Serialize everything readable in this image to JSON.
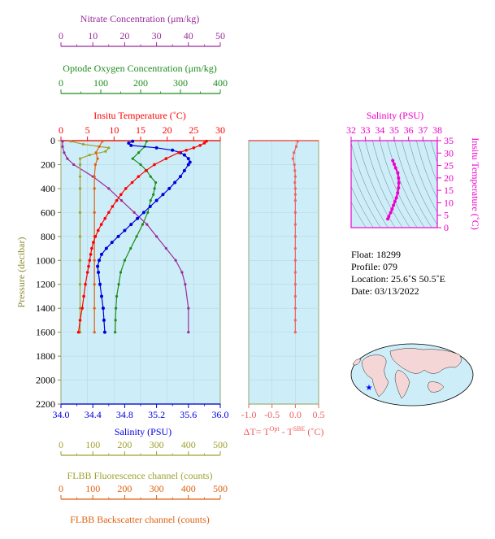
{
  "colors": {
    "nitrate": "#9b2b9b",
    "oxygen": "#1e8c1e",
    "temperature": "#ff0000",
    "salinity": "#0000dd",
    "fluorescence": "#a0a030",
    "backscatter": "#e06010",
    "delta_t": "#f06060",
    "inset": "#ee00cc",
    "plot_bg": "#cdeef8",
    "frame": "#8a8a30"
  },
  "info": {
    "float": "Float:  18299",
    "profile": "Profile:  079",
    "location": "Location:  25.6˚S  50.5˚E",
    "date": "Date:  03/13/2022"
  },
  "map_icon": "world-map-with-float-location-star",
  "chart_data": [
    {
      "type": "line",
      "name": "main-profiles",
      "ylabel": "Pressure (decibar)",
      "y_ticks": [
        "0",
        "200",
        "400",
        "600",
        "800",
        "1000",
        "1200",
        "1400",
        "1600",
        "1800",
        "2000",
        "2200"
      ],
      "ylim": [
        2200,
        0
      ],
      "axes": {
        "temperature": {
          "title": "Insitu Temperature (˚C)",
          "ticks": [
            "0",
            "5",
            "10",
            "15",
            "20",
            "25",
            "30"
          ],
          "range": [
            0,
            30
          ]
        },
        "salinity": {
          "title": "Salinity (PSU)",
          "ticks": [
            "34.0",
            "34.4",
            "34.8",
            "35.2",
            "35.6",
            "36.0"
          ],
          "range": [
            34.0,
            36.0
          ]
        },
        "nitrate": {
          "title": "Nitrate Concentration (μm/kg)",
          "ticks": [
            "0",
            "10",
            "20",
            "30",
            "40",
            "50"
          ],
          "range": [
            0,
            50
          ]
        },
        "oxygen": {
          "title": "Optode Oxygen Concentration (μm/kg)",
          "ticks": [
            "0",
            "100",
            "200",
            "300",
            "400"
          ],
          "range": [
            0,
            400
          ]
        },
        "fluorescence": {
          "title": "FLBB Fluorescence channel (counts)",
          "ticks": [
            "0",
            "100",
            "200",
            "300",
            "400",
            "500"
          ],
          "range": [
            0,
            500
          ]
        },
        "backscatter": {
          "title": "FLBB Backscatter channel (counts)",
          "ticks": [
            "0",
            "100",
            "200",
            "300",
            "400",
            "500"
          ],
          "range": [
            0,
            500
          ]
        }
      },
      "series": {
        "temperature": {
          "pressure": [
            5,
            20,
            40,
            60,
            80,
            100,
            150,
            200,
            250,
            300,
            350,
            400,
            450,
            500,
            550,
            600,
            650,
            700,
            750,
            800,
            850,
            900,
            950,
            1000,
            1050,
            1100,
            1200,
            1300,
            1400,
            1500,
            1600
          ],
          "values": [
            27.4,
            27.0,
            26.2,
            25.0,
            23.6,
            22.2,
            19.8,
            17.6,
            16.0,
            14.6,
            13.4,
            12.2,
            11.3,
            10.5,
            9.7,
            9.0,
            8.3,
            7.6,
            7.0,
            6.5,
            6.1,
            5.8,
            5.6,
            5.4,
            5.2,
            5.0,
            4.6,
            4.3,
            4.0,
            3.6,
            3.3
          ]
        },
        "salinity": {
          "pressure": [
            5,
            20,
            40,
            60,
            80,
            100,
            120,
            150,
            180,
            200,
            250,
            300,
            350,
            400,
            450,
            500,
            550,
            600,
            650,
            700,
            750,
            800,
            850,
            900,
            950,
            1000,
            1050,
            1100,
            1200,
            1300,
            1400,
            1500,
            1600
          ],
          "values": [
            34.9,
            34.85,
            34.88,
            35.2,
            35.4,
            35.5,
            35.55,
            35.6,
            35.62,
            35.6,
            35.55,
            35.5,
            35.43,
            35.36,
            35.28,
            35.2,
            35.12,
            35.04,
            34.96,
            34.88,
            34.8,
            34.72,
            34.64,
            34.57,
            34.51,
            34.48,
            34.46,
            34.47,
            34.49,
            34.51,
            34.53,
            34.54,
            34.55
          ]
        },
        "nitrate": {
          "pressure": [
            5,
            50,
            100,
            150,
            200,
            300,
            400,
            500,
            600,
            700,
            800,
            900,
            1000,
            1100,
            1200,
            1400,
            1600
          ],
          "values": [
            0.5,
            0.5,
            1.0,
            2.0,
            4.0,
            10.0,
            15.0,
            19.0,
            23.0,
            27.0,
            30.0,
            33.0,
            36.0,
            38.0,
            39.0,
            40.0,
            40.0
          ]
        },
        "oxygen": {
          "pressure": [
            5,
            50,
            100,
            150,
            200,
            250,
            300,
            350,
            400,
            450,
            500,
            600,
            700,
            800,
            900,
            1000,
            1100,
            1200,
            1300,
            1400,
            1500,
            1600
          ],
          "values": [
            215,
            210,
            195,
            180,
            200,
            215,
            225,
            238,
            235,
            232,
            225,
            218,
            205,
            190,
            175,
            160,
            150,
            145,
            140,
            138,
            137,
            136
          ]
        },
        "fluorescence": {
          "pressure": [
            5,
            30,
            60,
            90,
            120,
            150,
            200,
            300,
            400,
            600,
            800,
            1000,
            1200,
            1400,
            1600
          ],
          "values": [
            30,
            70,
            150,
            140,
            90,
            60,
            60,
            60,
            60,
            60,
            60,
            60,
            60,
            60,
            60
          ]
        },
        "backscatter": {
          "pressure": [
            5,
            50,
            100,
            150,
            200,
            300,
            400,
            600,
            800,
            1000,
            1200,
            1400,
            1600
          ],
          "values": [
            130,
            120,
            110,
            115,
            108,
            105,
            105,
            105,
            105,
            105,
            105,
            105,
            105
          ]
        }
      }
    },
    {
      "type": "line",
      "name": "delta-t",
      "xlabel": "ΔT= T",
      "xlabel_sup1": "Opt",
      "xlabel_mid": " - T",
      "xlabel_sup2": "SBE",
      "xlabel_end": " (˚C)",
      "x_ticks": [
        "-1.0",
        "-0.5",
        "0.0",
        "0.5"
      ],
      "xlim": [
        -1.0,
        0.5
      ],
      "pressure": [
        5,
        50,
        100,
        150,
        200,
        250,
        300,
        350,
        400,
        450,
        500,
        600,
        700,
        800,
        900,
        1000,
        1100,
        1200,
        1300,
        1400,
        1500,
        1600
      ],
      "values": [
        0.05,
        0.02,
        -0.03,
        -0.05,
        -0.02,
        -0.01,
        0.0,
        -0.01,
        0.0,
        0.0,
        0.0,
        0.0,
        0.0,
        0.0,
        0.0,
        0.0,
        0.0,
        0.0,
        0.0,
        0.0,
        0.0,
        0.0
      ]
    },
    {
      "type": "line",
      "name": "ts-diagram",
      "xlabel": "Salinity (PSU)",
      "ylabel": "Insitu Temperature (˚C)",
      "x_ticks": [
        "32",
        "33",
        "34",
        "35",
        "36",
        "37",
        "38"
      ],
      "y_ticks": [
        "0",
        "5",
        "10",
        "15",
        "20",
        "25",
        "30",
        "35"
      ],
      "xlim": [
        32,
        38
      ],
      "ylim": [
        0,
        35
      ],
      "salinity": [
        34.9,
        35.0,
        35.1,
        35.25,
        35.3,
        35.32,
        35.3,
        35.24,
        35.15,
        35.05,
        34.95,
        34.85,
        34.75,
        34.62,
        34.55
      ],
      "temperature": [
        27.0,
        25.5,
        24.0,
        22.0,
        20.0,
        18.0,
        16.0,
        14.0,
        12.0,
        10.5,
        9.0,
        7.5,
        6.0,
        4.5,
        3.5
      ]
    }
  ]
}
